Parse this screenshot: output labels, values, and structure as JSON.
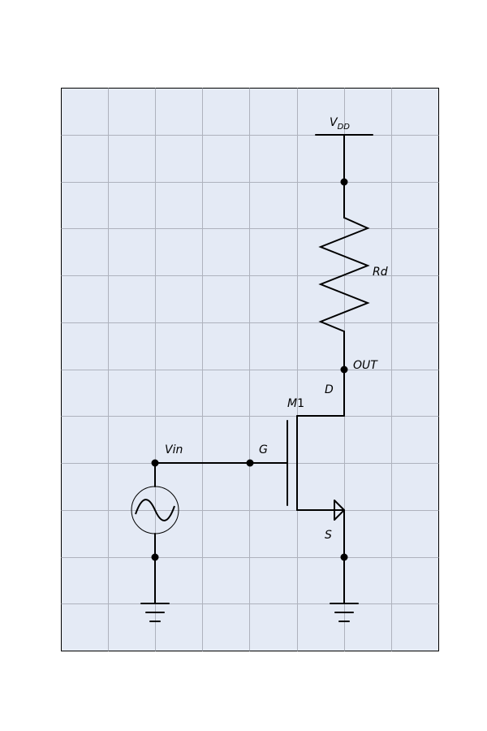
{
  "background_color": "#e4eaf5",
  "grid_color": "#aeb2bd",
  "grid": true,
  "labels": {
    "vdd_main": "V",
    "vdd_sub": "DD",
    "rd": "Rd",
    "out": "OUT",
    "drain": "D",
    "transistor_main": "M",
    "transistor_num": "1",
    "gate": "G",
    "vin": "Vin",
    "source": "S"
  },
  "components": {
    "supply": "vdd-rail-icon",
    "resistor": "resistor-icon",
    "transistor": "nmos-transistor-icon",
    "source": "ac-voltage-source-icon",
    "grounds": [
      "ground-icon",
      "ground-icon"
    ]
  }
}
